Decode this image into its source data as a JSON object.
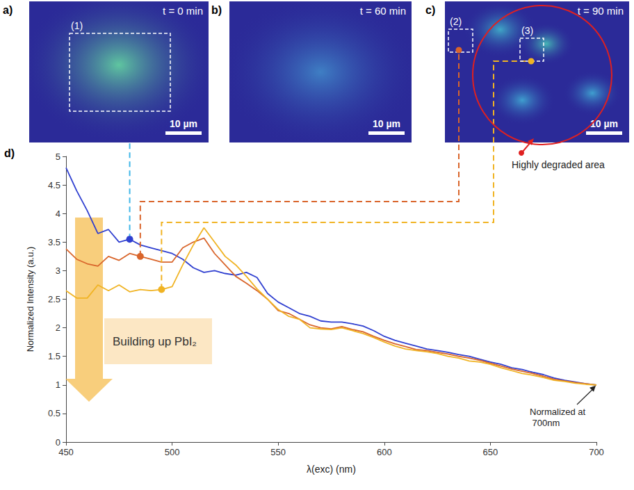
{
  "chart_data": {
    "type": "line",
    "panel_label": "d)",
    "x_label": "λ(exc) (nm)",
    "y_label": "Normalized Intensity (a.u.)",
    "x": [
      450,
      455,
      460,
      465,
      470,
      475,
      480,
      485,
      490,
      495,
      500,
      505,
      510,
      515,
      520,
      525,
      530,
      535,
      540,
      545,
      550,
      555,
      560,
      565,
      570,
      575,
      580,
      585,
      590,
      595,
      600,
      605,
      610,
      615,
      620,
      625,
      630,
      635,
      640,
      645,
      650,
      655,
      660,
      665,
      670,
      675,
      680,
      685,
      690,
      695,
      700
    ],
    "series": [
      {
        "region": "(1)",
        "color": "#2f3fd0",
        "highlight": {
          "x": 480,
          "y": 3.55
        },
        "values": [
          4.8,
          4.4,
          4.05,
          3.65,
          3.72,
          3.5,
          3.55,
          3.45,
          3.4,
          3.35,
          3.3,
          3.2,
          3.05,
          2.97,
          3.0,
          2.95,
          2.92,
          2.97,
          2.88,
          2.6,
          2.45,
          2.35,
          2.25,
          2.2,
          2.12,
          2.1,
          2.1,
          2.07,
          2.03,
          1.95,
          1.85,
          1.78,
          1.73,
          1.68,
          1.63,
          1.6,
          1.57,
          1.53,
          1.5,
          1.45,
          1.4,
          1.36,
          1.3,
          1.27,
          1.22,
          1.18,
          1.12,
          1.08,
          1.05,
          1.02,
          1.0
        ]
      },
      {
        "region": "(2)",
        "color": "#d9652b",
        "highlight": {
          "x": 485,
          "y": 3.25
        },
        "values": [
          3.38,
          3.2,
          3.12,
          3.08,
          3.25,
          3.18,
          3.3,
          3.25,
          3.2,
          3.15,
          3.15,
          3.4,
          3.5,
          3.57,
          3.3,
          3.1,
          2.9,
          2.78,
          2.65,
          2.5,
          2.3,
          2.25,
          2.15,
          2.05,
          2.0,
          1.98,
          2.02,
          1.97,
          1.93,
          1.85,
          1.78,
          1.72,
          1.67,
          1.62,
          1.6,
          1.57,
          1.54,
          1.5,
          1.47,
          1.43,
          1.38,
          1.33,
          1.28,
          1.24,
          1.2,
          1.15,
          1.1,
          1.07,
          1.04,
          1.02,
          1.0
        ]
      },
      {
        "region": "(3)",
        "color": "#f0b323",
        "highlight": {
          "x": 495,
          "y": 2.67
        },
        "values": [
          2.65,
          2.52,
          2.52,
          2.75,
          2.65,
          2.75,
          2.63,
          2.67,
          2.65,
          2.67,
          2.72,
          3.1,
          3.45,
          3.75,
          3.5,
          3.25,
          3.1,
          2.9,
          2.68,
          2.5,
          2.32,
          2.2,
          2.15,
          2.0,
          1.98,
          1.97,
          2.0,
          1.95,
          1.9,
          1.83,
          1.75,
          1.68,
          1.63,
          1.6,
          1.58,
          1.55,
          1.5,
          1.47,
          1.42,
          1.4,
          1.36,
          1.3,
          1.25,
          1.2,
          1.17,
          1.13,
          1.08,
          1.06,
          1.03,
          1.01,
          1.0
        ]
      }
    ],
    "xlim": [
      450,
      700
    ],
    "xticks": [
      450,
      500,
      550,
      600,
      650,
      700
    ],
    "ylim": [
      0,
      5
    ],
    "yticks": [
      0,
      0.5,
      1,
      1.5,
      2,
      2.5,
      3,
      3.5,
      4,
      4.5,
      5
    ],
    "grid": false,
    "annotations": [
      {
        "text": "Building up PbI₂"
      },
      {
        "text": "Normalized at 700nm",
        "x": 700,
        "y": 1
      }
    ]
  },
  "image_panels": [
    {
      "letter": "a)",
      "time": "t = 0 min",
      "scale_bar": "10 µm",
      "regions": [
        "(1)"
      ]
    },
    {
      "letter": "b)",
      "time": "t = 60 min",
      "scale_bar": "10 µm"
    },
    {
      "letter": "c)",
      "time": "t = 90 min",
      "scale_bar": "10 µm",
      "regions": [
        "(2)",
        "(3)"
      ],
      "annotation": "Highly degraded area"
    }
  ]
}
